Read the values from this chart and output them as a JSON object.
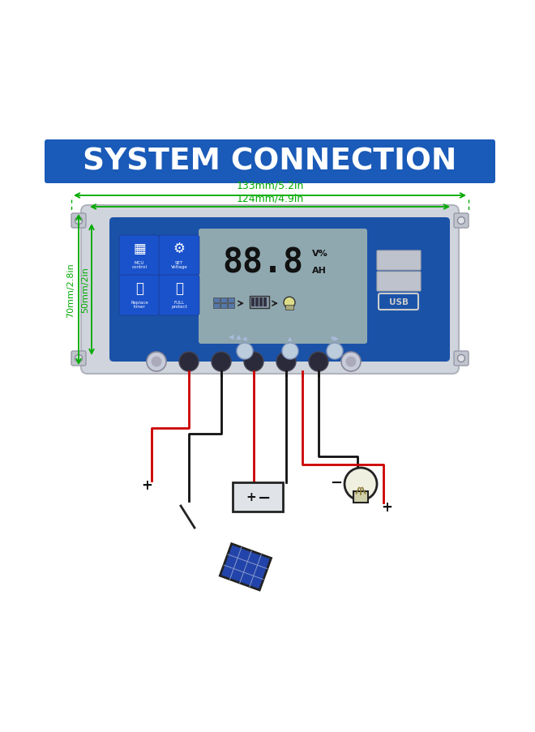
{
  "bg_color": "#ffffff",
  "title_text": "SYSTEM CONNECTION",
  "title_bg": "#1a5ab8",
  "title_text_color": "#ffffff",
  "dim_color": "#00aa00",
  "dim1_label": "133mm/5.2in",
  "dim2_label": "124mm/4.9in",
  "dim3_label": "70mm/2.8in",
  "dim4_label": "50mm/2in",
  "display_number": "88.8",
  "usb_label": "USB",
  "wire_red": "#cc0000",
  "wire_black": "#111111",
  "device_gray": "#d0d4dc",
  "lcd_blue": "#1a52a8",
  "screen_gray": "#8fa8b0",
  "btn_blue": "#1a52cc"
}
